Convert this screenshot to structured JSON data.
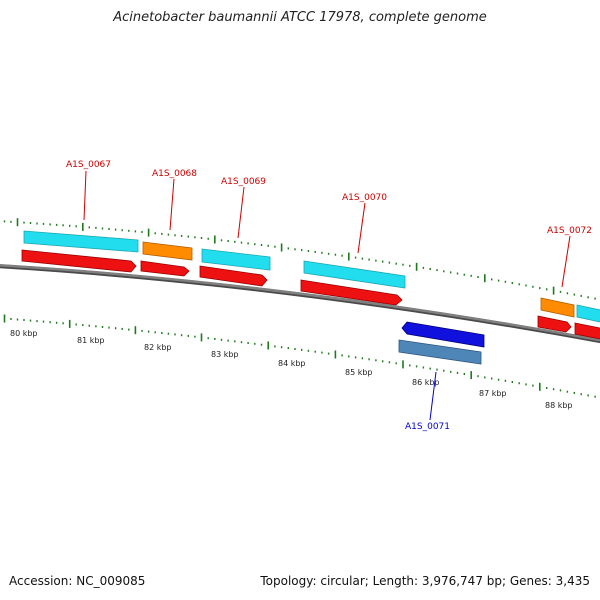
{
  "title": "Acinetobacter baumannii ATCC 17978, complete genome",
  "footer": {
    "accession": "Accession: NC_009085",
    "summary": "Topology: circular; Length: 3,976,747 bp; Genes: 3,435"
  },
  "colors": {
    "backbone": "#808080",
    "tick": "#1f7a1f",
    "cds": "#ee1111",
    "gene_cyan": "#22ddee",
    "gene_orange": "#ff8c00",
    "reverse_cds": "#1111dd",
    "reverse_gene": "#4f86b8",
    "label_forward": "#cc0000",
    "label_reverse": "#0000cc"
  },
  "scale_labels": [
    "80 kbp",
    "81 kbp",
    "82 kbp",
    "83 kbp",
    "84 kbp",
    "85 kbp",
    "86 kbp",
    "87 kbp",
    "88 kbp"
  ],
  "gene_labels": [
    {
      "text": "A1S_0067",
      "strand": "forward"
    },
    {
      "text": "A1S_0068",
      "strand": "forward"
    },
    {
      "text": "A1S_0069",
      "strand": "forward"
    },
    {
      "text": "A1S_0070",
      "strand": "forward"
    },
    {
      "text": "A1S_0071",
      "strand": "reverse"
    },
    {
      "text": "A1S_0072",
      "strand": "forward"
    }
  ]
}
